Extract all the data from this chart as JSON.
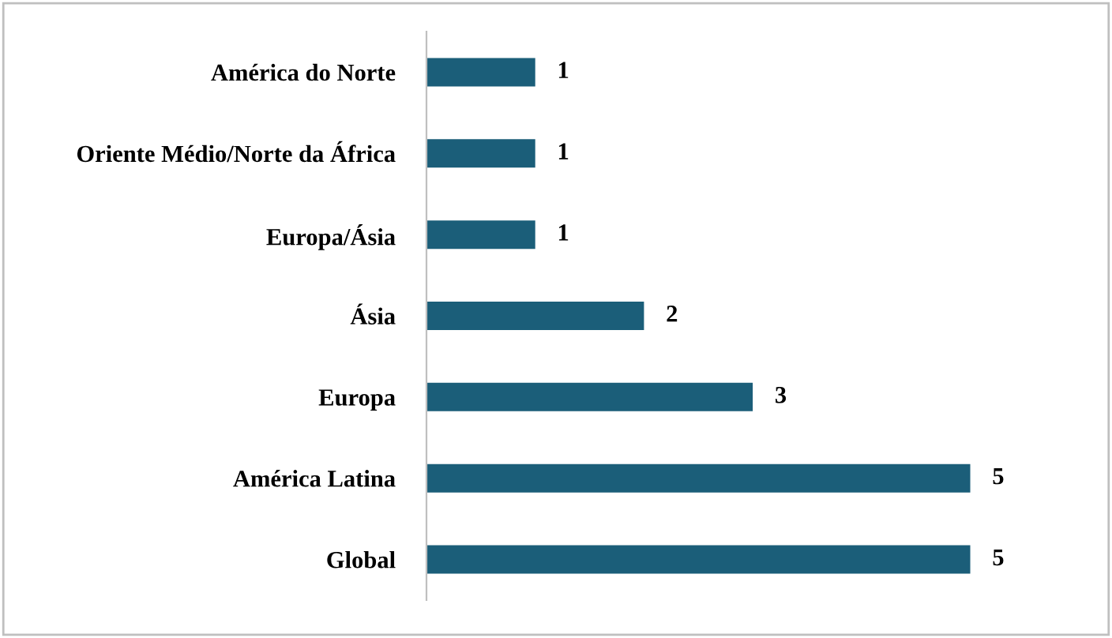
{
  "chart_data": {
    "type": "bar",
    "orientation": "horizontal",
    "categories": [
      "América do Norte",
      "Oriente Médio/Norte da África",
      "Europa/Ásia",
      "Ásia",
      "Europa",
      "América Latina",
      "Global"
    ],
    "values": [
      1,
      1,
      1,
      2,
      3,
      5,
      5
    ],
    "color": "#1b5e79",
    "data_labels": true,
    "tick_labels": "y",
    "grid": false,
    "legend": false
  }
}
